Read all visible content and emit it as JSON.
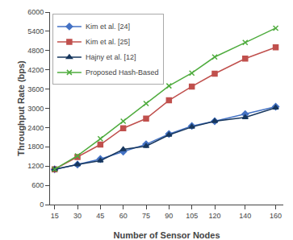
{
  "chart_data": {
    "type": "line",
    "x": [
      15,
      30,
      45,
      60,
      75,
      90,
      105,
      120,
      140,
      160
    ],
    "series": [
      {
        "name": "Kim et al. [24]",
        "color": "#4472c4",
        "marker": "diamond",
        "values": [
          1100,
          1250,
          1420,
          1650,
          1880,
          2200,
          2450,
          2600,
          2820,
          3050
        ]
      },
      {
        "name": "Kim et al. [25]",
        "color": "#c0504d",
        "marker": "square",
        "values": [
          1100,
          1480,
          1870,
          2380,
          2680,
          3250,
          3680,
          4080,
          4550,
          4900
        ]
      },
      {
        "name": "Hajny et al. [12]",
        "color": "#17375e",
        "marker": "triangle",
        "values": [
          1100,
          1250,
          1370,
          1720,
          1820,
          2170,
          2420,
          2600,
          2720,
          3020
        ]
      },
      {
        "name": "Proposed Hash-Based",
        "color": "#4fac3e",
        "marker": "x",
        "values": [
          1100,
          1520,
          2050,
          2600,
          3150,
          3700,
          4100,
          4600,
          5050,
          5500
        ]
      }
    ],
    "xlabel": "Number of Sensor Nodes",
    "ylabel": "Throughput Rate (bps)",
    "xlim": [
      12,
      165
    ],
    "xticks": [
      15,
      30,
      45,
      60,
      75,
      90,
      105,
      120,
      140,
      160
    ],
    "ylim": [
      0,
      6000
    ],
    "yticks": [
      0,
      600,
      1200,
      1800,
      2400,
      3000,
      3600,
      4200,
      4800,
      5400,
      6000
    ],
    "grid": false,
    "legend": "upper left"
  }
}
